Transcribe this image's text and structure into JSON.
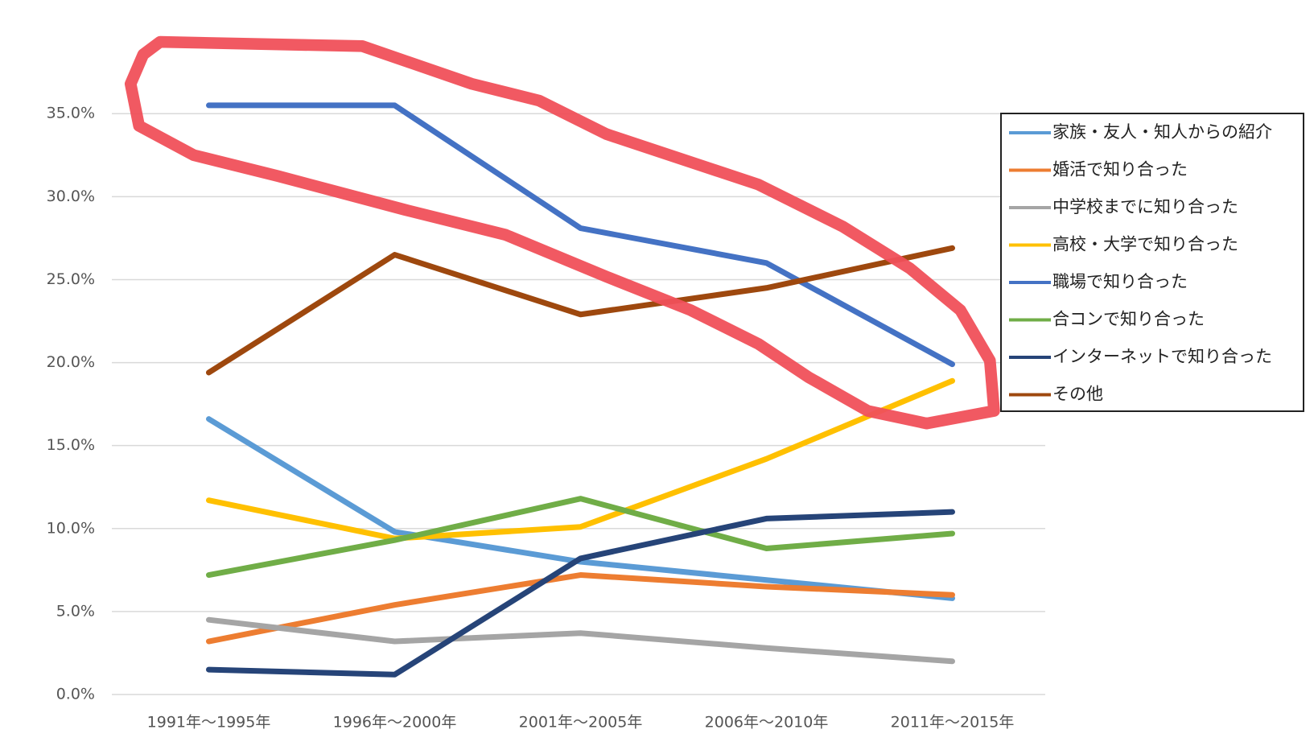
{
  "chart_data": {
    "type": "line",
    "categories": [
      "1991年～1995年",
      "1996年～2000年",
      "2001年～2005年",
      "2006年～2010年",
      "2011年～2015年"
    ],
    "series": [
      {
        "name": "家族・友人・知人からの紹介",
        "color": "#5b9bd5",
        "values": [
          16.6,
          9.8,
          8.0,
          6.9,
          5.8
        ]
      },
      {
        "name": "婚活で知り合った",
        "color": "#ed7d31",
        "values": [
          3.2,
          5.4,
          7.2,
          6.5,
          6.0
        ]
      },
      {
        "name": "中学校までに知り合った",
        "color": "#a5a5a5",
        "values": [
          4.5,
          3.2,
          3.7,
          2.8,
          2.0
        ]
      },
      {
        "name": "高校・大学で知り合った",
        "color": "#ffc000",
        "values": [
          11.7,
          9.4,
          10.1,
          14.2,
          18.9
        ]
      },
      {
        "name": "職場で知り合った",
        "color": "#4472c4",
        "values": [
          35.5,
          35.5,
          28.1,
          26.0,
          19.9
        ]
      },
      {
        "name": "合コンで知り合った",
        "color": "#70ad47",
        "values": [
          7.2,
          9.3,
          11.8,
          8.8,
          9.7
        ]
      },
      {
        "name": "インターネットで知り合った",
        "color": "#264478",
        "values": [
          1.5,
          1.2,
          8.2,
          10.6,
          11.0
        ]
      },
      {
        "name": "その他",
        "color": "#9e480e",
        "values": [
          19.4,
          26.5,
          22.9,
          24.5,
          26.9
        ]
      }
    ],
    "ylim": [
      0,
      37
    ],
    "yticks": [
      {
        "value": 0,
        "label": "0.0%"
      },
      {
        "value": 5,
        "label": "5.0%"
      },
      {
        "value": 10,
        "label": "10.0%"
      },
      {
        "value": 15,
        "label": "15.0%"
      },
      {
        "value": 20,
        "label": "20.0%"
      },
      {
        "value": 25,
        "label": "25.0%"
      },
      {
        "value": 30,
        "label": "30.0%"
      },
      {
        "value": 35,
        "label": "35.0%"
      }
    ],
    "grid": true,
    "legend": "right"
  }
}
